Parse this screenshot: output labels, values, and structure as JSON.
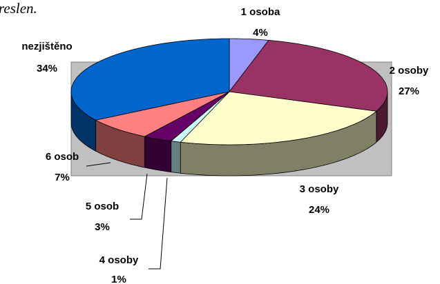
{
  "caption": "reslen.",
  "chart_data": {
    "type": "pie3d",
    "categories": [
      "1 osoba",
      "2 osoby",
      "3 osoby",
      "4 osoby",
      "5 osob",
      "6 osob",
      "nezjištěno"
    ],
    "values": [
      4,
      27,
      24,
      1,
      3,
      7,
      34
    ],
    "value_labels": [
      "4%",
      "27%",
      "24%",
      "1%",
      "3%",
      "7%",
      "34%"
    ],
    "colors": [
      "#9999ff",
      "#993366",
      "#ffffcc",
      "#ccffff",
      "#660066",
      "#ff8080",
      "#0066cc"
    ]
  }
}
